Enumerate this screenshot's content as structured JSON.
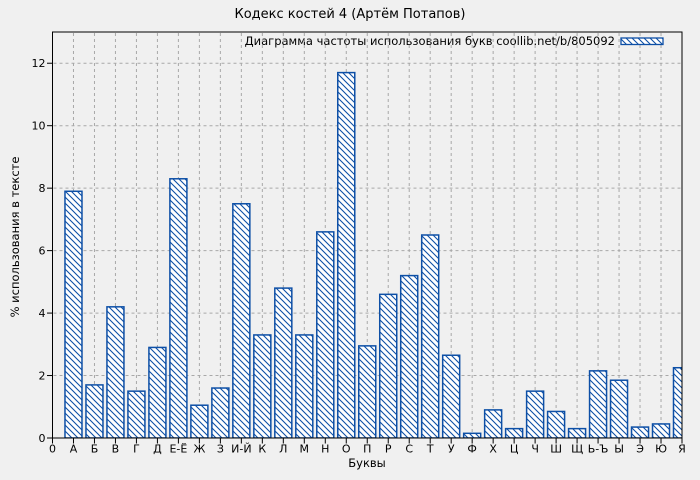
{
  "chart_data": {
    "type": "bar",
    "title": "Кодекс костей 4 (Артём Потапов)",
    "legend_label": "Диаграмма частоты использования букв coollib.net/b/805092",
    "legend_position": "top-right-inside",
    "xlabel": "Буквы",
    "ylabel": "% использования в тексте",
    "x_origin_tick": "0",
    "categories": [
      "А",
      "Б",
      "В",
      "Г",
      "Д",
      "Е-Ё",
      "Ж",
      "З",
      "И-Й",
      "К",
      "Л",
      "М",
      "Н",
      "О",
      "П",
      "Р",
      "С",
      "Т",
      "У",
      "Ф",
      "Х",
      "Ц",
      "Ч",
      "Ш",
      "Щ",
      "Ь-Ъ",
      "Ы",
      "Э",
      "Ю",
      "Я"
    ],
    "values": [
      7.9,
      1.7,
      4.2,
      1.5,
      2.9,
      8.3,
      1.05,
      1.6,
      7.5,
      3.3,
      4.8,
      3.3,
      6.6,
      11.7,
      2.95,
      4.6,
      5.2,
      6.5,
      2.65,
      0.15,
      0.9,
      0.3,
      1.5,
      0.85,
      0.3,
      2.15,
      1.85,
      0.35,
      0.45,
      2.25
    ],
    "yticks": [
      0,
      2,
      4,
      6,
      8,
      10,
      12
    ],
    "ylim": [
      0,
      13
    ],
    "grid": true,
    "colors": {
      "bar": "#0d4fa6",
      "bar_fill": "#ffffff",
      "background": "#f0f0f0",
      "grid": "#a8a8a8",
      "frame": "#000000",
      "text": "#000000"
    },
    "bar_hatch": "backslash-diagonal"
  }
}
